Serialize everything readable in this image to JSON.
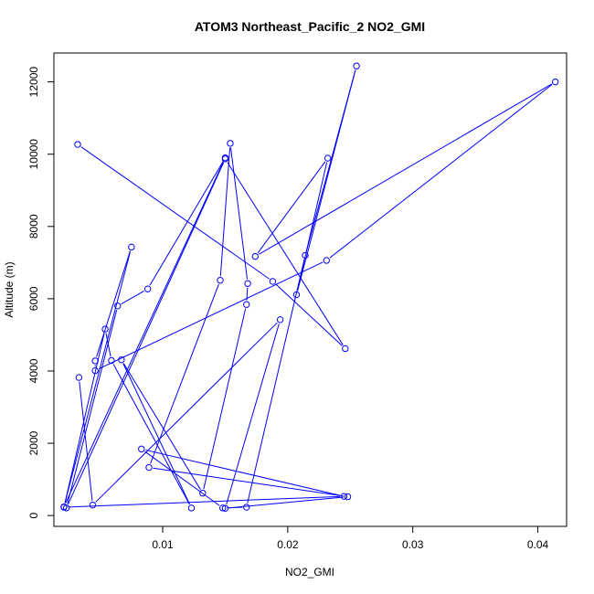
{
  "chart_data": {
    "type": "line",
    "title": "ATOM3 Northeast_Pacific_2 NO2_GMI",
    "xlabel": "NO2_GMI",
    "ylabel": "Altitude (m)",
    "xlim": [
      0.0013,
      0.0423
    ],
    "ylim": [
      -300,
      12800
    ],
    "x_ticks": [
      0.01,
      0.02,
      0.03,
      0.04
    ],
    "x_tick_labels": [
      "0.01",
      "0.02",
      "0.03",
      "0.04"
    ],
    "y_ticks": [
      0,
      2000,
      4000,
      6000,
      8000,
      10000,
      12000
    ],
    "y_tick_labels": [
      "0",
      "2000",
      "4000",
      "6000",
      "8000",
      "10000",
      "12000"
    ],
    "grid": false,
    "legend": "none",
    "series": [
      {
        "color": "#0000ff",
        "marker": "open-circle",
        "x": [
          0.0032,
          0.0188,
          0.0246,
          0.015,
          0.0023,
          0.0064,
          0.0088,
          0.015,
          0.0021,
          0.0075,
          0.0046,
          0.0046,
          0.0231,
          0.0414,
          0.0174,
          0.0232,
          0.0207,
          0.0255,
          0.0214,
          0.0167,
          0.0148,
          0.0083,
          0.0245,
          0.0021,
          0.0054,
          0.0059,
          0.0123,
          0.0067,
          0.0132,
          0.0167,
          0.0168,
          0.0154,
          0.0146,
          0.0089,
          0.0248,
          0.015,
          0.0194,
          0.0044,
          0.0033
        ],
        "y": [
          10270,
          6480,
          4620,
          9870,
          210,
          5800,
          6270,
          9900,
          240,
          7430,
          4280,
          4010,
          7060,
          12000,
          7170,
          9890,
          6110,
          12440,
          7200,
          230,
          210,
          1840,
          530,
          230,
          5160,
          4290,
          210,
          4310,
          620,
          5840,
          6420,
          10300,
          6510,
          1330,
          520,
          200,
          5420,
          290,
          3820
        ]
      }
    ]
  }
}
